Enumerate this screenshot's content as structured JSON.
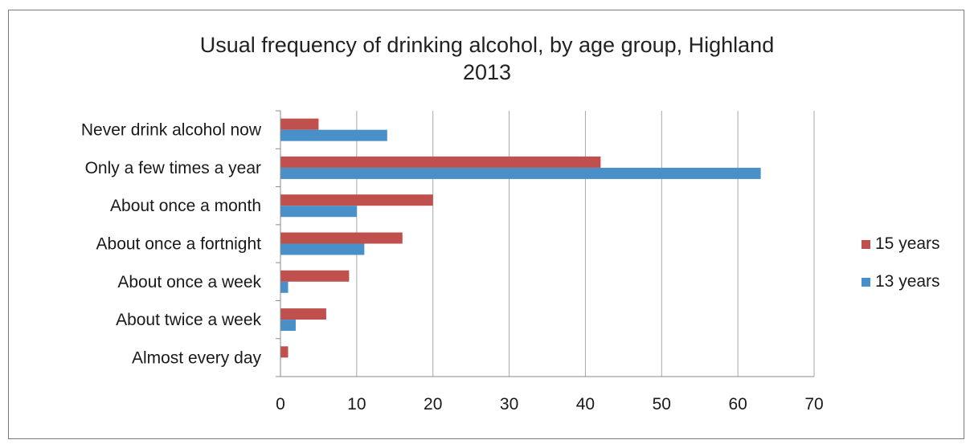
{
  "chart_data": {
    "type": "bar",
    "orientation": "horizontal",
    "title_lines": [
      "Usual frequency of drinking alcohol, by age group, Highland",
      "2013"
    ],
    "categories": [
      "Never drink alcohol now",
      "Only a few times a year",
      "About once a month",
      "About once a fortnight",
      "About once a week",
      "About twice a week",
      "Almost every day"
    ],
    "series": [
      {
        "name": "15 years",
        "color": "#c0504d",
        "values": [
          5,
          42,
          20,
          16,
          9,
          6,
          1
        ]
      },
      {
        "name": "13 years",
        "color": "#4a90c8",
        "values": [
          14,
          63,
          10,
          11,
          1,
          2,
          0
        ]
      }
    ],
    "xlim": [
      0,
      70
    ],
    "xticks": [
      0,
      10,
      20,
      30,
      40,
      50,
      60,
      70
    ],
    "xlabel": "",
    "ylabel": "",
    "grid": "vertical",
    "legend": "right"
  }
}
